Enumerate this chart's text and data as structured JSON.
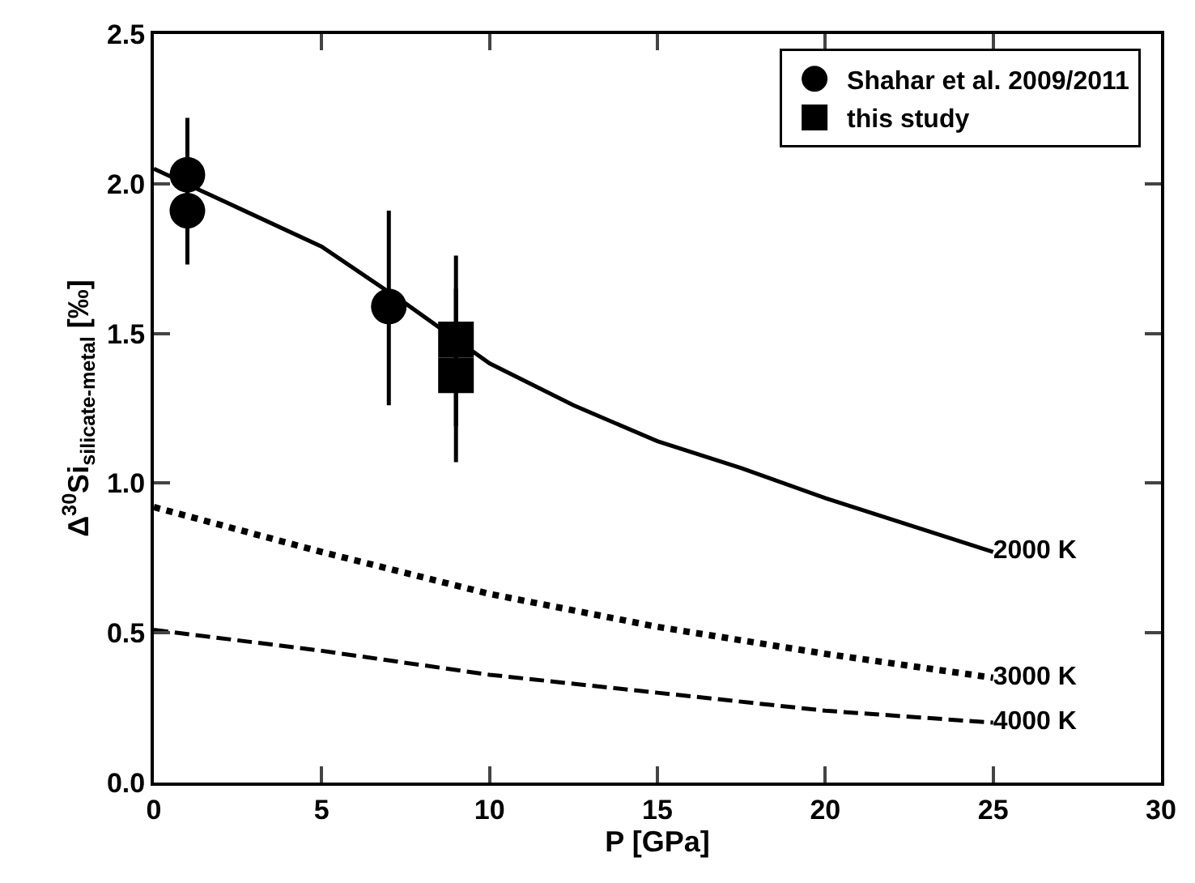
{
  "chart_data": {
    "type": "scatter",
    "xlabel": "P [GPa]",
    "ylabel": "Δ$^{30}$Si$_{silicate-metal}$ [‰]",
    "xlim": [
      0,
      30
    ],
    "xticks": [
      0,
      5,
      10,
      15,
      20,
      25,
      30
    ],
    "ylim": [
      0,
      2.5
    ],
    "yticks": [
      {
        "value": 0,
        "label": "0.0"
      },
      0.5,
      {
        "value": 1,
        "label": "1.0"
      },
      1.5,
      {
        "value": 2,
        "label": "2.0"
      },
      2.5
    ],
    "legend": "top right",
    "series": [
      {
        "name": "Shahar et al. 2009/2011",
        "type": "scatter",
        "marker": "circle",
        "color": "#000000",
        "x": [
          1,
          1,
          7
        ],
        "values": [
          2.03,
          1.91,
          1.59
        ],
        "errors": [
          [
            1.84,
            2.22
          ],
          [
            1.73,
            2.09
          ],
          [
            1.26,
            1.91
          ]
        ]
      },
      {
        "name": "this study",
        "type": "scatter",
        "marker": "square",
        "color": "#000000",
        "x": [
          9,
          9
        ],
        "values": [
          1.48,
          1.36
        ],
        "errors": [
          [
            1.19,
            1.76
          ],
          [
            1.07,
            1.65
          ]
        ]
      },
      {
        "name": "2000 K",
        "type": "line",
        "line_style": "solid",
        "color": "#000000",
        "x": [
          0,
          2.5,
          5,
          7.5,
          10,
          12.5,
          15,
          17.5,
          20,
          22.5,
          25
        ],
        "values": [
          2.05,
          1.92,
          1.79,
          1.6,
          1.4,
          1.26,
          1.14,
          1.05,
          0.95,
          0.86,
          0.77
        ]
      },
      {
        "name": "3000 K",
        "type": "line",
        "line_style": "dotted",
        "color": "#000000",
        "x": [
          0,
          5,
          10,
          15,
          20,
          25
        ],
        "values": [
          0.92,
          0.77,
          0.63,
          0.52,
          0.43,
          0.35
        ]
      },
      {
        "name": "4000 K",
        "type": "line",
        "line_style": "dashed",
        "color": "#000000",
        "x": [
          0,
          5,
          10,
          15,
          20,
          25
        ],
        "values": [
          0.51,
          0.44,
          0.36,
          0.3,
          0.24,
          0.2
        ]
      }
    ]
  }
}
